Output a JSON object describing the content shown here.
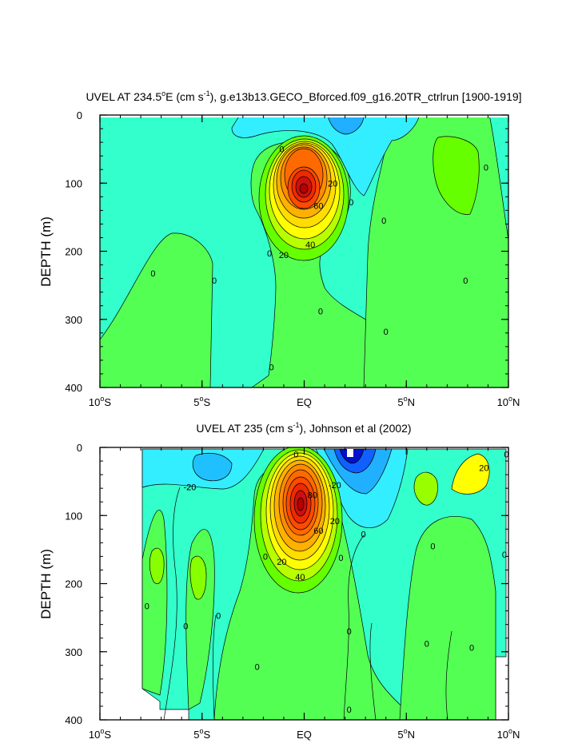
{
  "chart_data": [
    {
      "type": "heatmap",
      "title_pre": "UVEL AT 234.5",
      "title_deg": "o",
      "title_mid1": "E (cm s",
      "title_exp": "-1",
      "title_mid2": "), g.e13b13.GECO_Bforced.f09_g16.20TR_ctrlrun [1900-1919]",
      "ylabel": "DEPTH (m)",
      "ylim": [
        400,
        0
      ],
      "xlim": [
        -10,
        10
      ],
      "yticks": [
        {
          "value": 0,
          "label": "0"
        },
        {
          "value": 100,
          "label": "100"
        },
        {
          "value": 200,
          "label": "200"
        },
        {
          "value": 300,
          "label": "300"
        },
        {
          "value": 400,
          "label": "400"
        }
      ],
      "xticks": [
        {
          "value": -10,
          "num": "10",
          "deg": "o",
          "hemi": "S"
        },
        {
          "value": -5,
          "num": "5",
          "deg": "o",
          "hemi": "S"
        },
        {
          "value": 0,
          "num": "EQ",
          "deg": "",
          "hemi": ""
        },
        {
          "value": 5,
          "num": "5",
          "deg": "o",
          "hemi": "N"
        },
        {
          "value": 10,
          "num": "10",
          "deg": "o",
          "hemi": "N"
        }
      ],
      "contour_labels": [
        {
          "text": "0",
          "lat": -1.1,
          "depth": 50
        },
        {
          "text": "20",
          "lat": 1.4,
          "depth": 100
        },
        {
          "text": "60",
          "lat": 0.7,
          "depth": 133
        },
        {
          "text": "40",
          "lat": 0.3,
          "depth": 190
        },
        {
          "text": "20",
          "lat": -1.0,
          "depth": 205
        },
        {
          "text": "0",
          "lat": 2.3,
          "depth": 128
        },
        {
          "text": "0",
          "lat": 3.9,
          "depth": 155
        },
        {
          "text": "0",
          "lat": -1.7,
          "depth": 203
        },
        {
          "text": "0",
          "lat": -7.4,
          "depth": 232
        },
        {
          "text": "0",
          "lat": -4.4,
          "depth": 243
        },
        {
          "text": "0",
          "lat": 0.8,
          "depth": 288
        },
        {
          "text": "0",
          "lat": 4.0,
          "depth": 318
        },
        {
          "text": "0",
          "lat": -1.6,
          "depth": 370
        },
        {
          "text": "0",
          "lat": 7.9,
          "depth": 243
        },
        {
          "text": "0",
          "lat": 8.9,
          "depth": 77
        }
      ]
    },
    {
      "type": "heatmap",
      "title_pre": "UVEL AT 235 (cm s",
      "title_exp": "-1",
      "title_mid2": "), Johnson et al (2002)",
      "ylabel": "DEPTH (m)",
      "ylim": [
        400,
        0
      ],
      "xlim": [
        -10,
        10
      ],
      "yticks": [
        {
          "value": 0,
          "label": "0"
        },
        {
          "value": 100,
          "label": "100"
        },
        {
          "value": 200,
          "label": "200"
        },
        {
          "value": 300,
          "label": "300"
        },
        {
          "value": 400,
          "label": "400"
        }
      ],
      "xticks": [
        {
          "value": -10,
          "num": "10",
          "deg": "o",
          "hemi": "S"
        },
        {
          "value": -5,
          "num": "5",
          "deg": "o",
          "hemi": "S"
        },
        {
          "value": 0,
          "num": "EQ",
          "deg": "",
          "hemi": ""
        },
        {
          "value": 5,
          "num": "5",
          "deg": "o",
          "hemi": "N"
        },
        {
          "value": 10,
          "num": "10",
          "deg": "o",
          "hemi": "N"
        }
      ],
      "contour_labels": [
        {
          "text": "0",
          "lat": -0.4,
          "depth": 10
        },
        {
          "text": "-20",
          "lat": -5.6,
          "depth": 58
        },
        {
          "text": "-20",
          "lat": 1.5,
          "depth": 55
        },
        {
          "text": "80",
          "lat": 0.4,
          "depth": 70
        },
        {
          "text": "20",
          "lat": 1.5,
          "depth": 108
        },
        {
          "text": "60",
          "lat": 0.7,
          "depth": 122
        },
        {
          "text": "0",
          "lat": 2.9,
          "depth": 127
        },
        {
          "text": "0",
          "lat": -1.9,
          "depth": 160
        },
        {
          "text": "20",
          "lat": -1.1,
          "depth": 168
        },
        {
          "text": "40",
          "lat": -0.2,
          "depth": 190
        },
        {
          "text": "0",
          "lat": 1.8,
          "depth": 162
        },
        {
          "text": "0",
          "lat": 6.3,
          "depth": 145
        },
        {
          "text": "0",
          "lat": 9.8,
          "depth": 157
        },
        {
          "text": "20",
          "lat": 8.8,
          "depth": 30
        },
        {
          "text": "0",
          "lat": 9.9,
          "depth": 10
        },
        {
          "text": "0",
          "lat": -7.7,
          "depth": 233
        },
        {
          "text": "0",
          "lat": -5.8,
          "depth": 262
        },
        {
          "text": "0",
          "lat": -4.2,
          "depth": 247
        },
        {
          "text": "0",
          "lat": 2.2,
          "depth": 270
        },
        {
          "text": "0",
          "lat": -2.3,
          "depth": 322
        },
        {
          "text": "0",
          "lat": 6.0,
          "depth": 288
        },
        {
          "text": "0",
          "lat": 8.2,
          "depth": 294
        },
        {
          "text": "0",
          "lat": 2.2,
          "depth": 385
        }
      ]
    }
  ]
}
